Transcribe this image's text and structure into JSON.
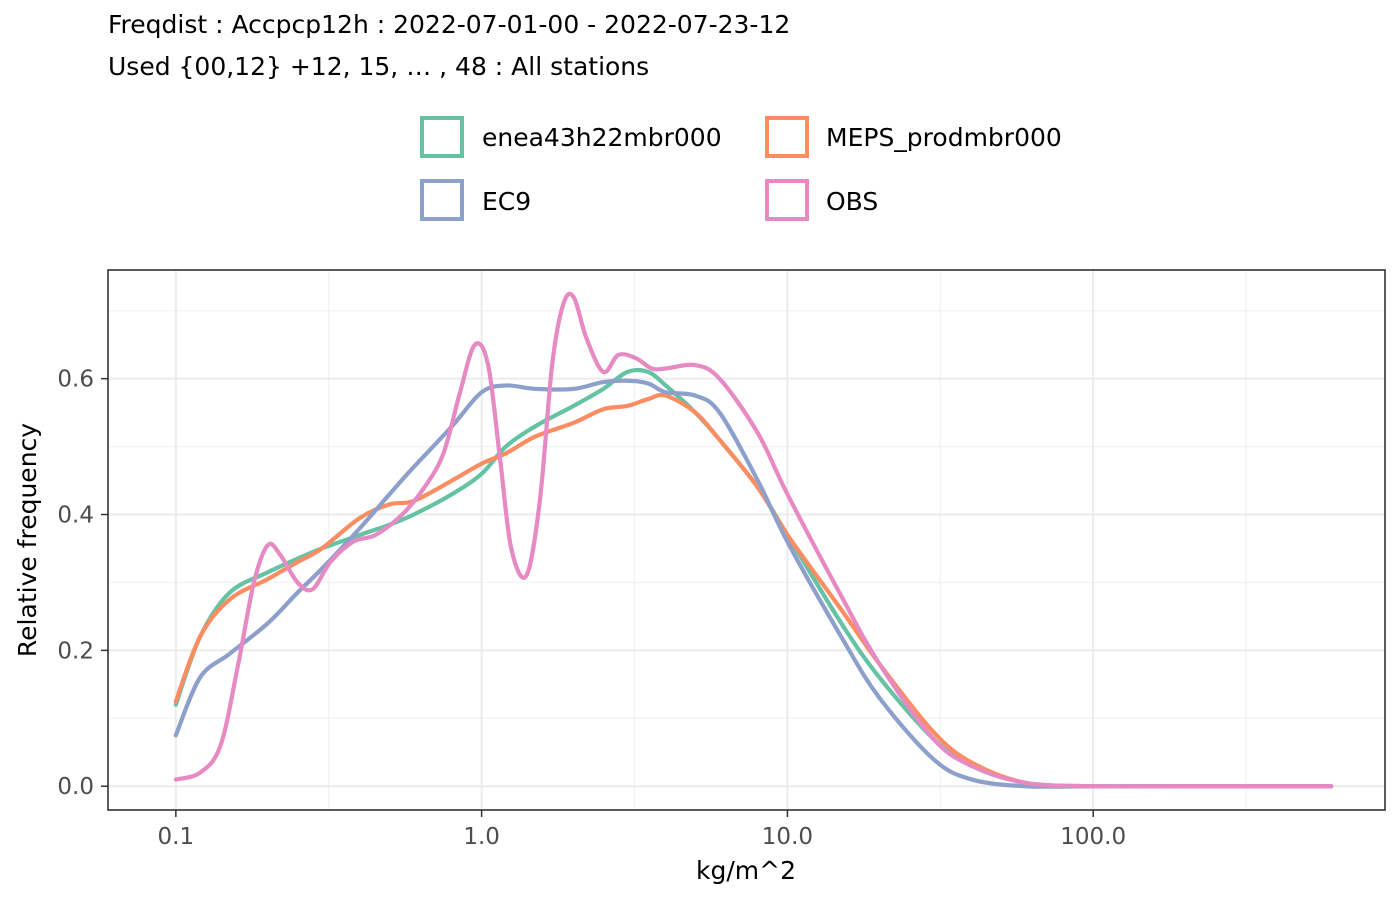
{
  "chart_data": {
    "type": "line",
    "title": "Freqdist : Accpcp12h : 2022-07-01-00 - 2022-07-23-12",
    "subtitle": "Used {00,12} +12, 15, … , 48 : All stations",
    "xlabel": "kg/m^2",
    "ylabel": "Relative frequency",
    "xscale": "log10",
    "xlim": [
      0.06,
      900
    ],
    "ylim": [
      -0.035,
      0.76
    ],
    "xticks": [
      0.1,
      1.0,
      10.0,
      100.0
    ],
    "xtick_labels": [
      "0.1",
      "1.0",
      "10.0",
      "100.0"
    ],
    "yticks": [
      0.0,
      0.2,
      0.4,
      0.6
    ],
    "ytick_labels": [
      "0.0",
      "0.2",
      "0.4",
      "0.6"
    ],
    "grid": true,
    "legend_position": "top",
    "series": [
      {
        "name": "enea43h22mbr000",
        "color": "#66c2a5",
        "x": [
          0.1,
          0.12,
          0.15,
          0.2,
          0.25,
          0.3,
          0.4,
          0.5,
          0.6,
          0.8,
          1.0,
          1.2,
          1.5,
          2.0,
          2.5,
          3.0,
          3.5,
          4.0,
          5.0,
          6.0,
          8.0,
          10.0,
          15.0,
          20.0,
          30.0,
          40.0,
          60.0,
          100.0,
          200.0,
          600.0
        ],
        "y": [
          0.12,
          0.22,
          0.285,
          0.315,
          0.335,
          0.35,
          0.37,
          0.385,
          0.4,
          0.43,
          0.46,
          0.5,
          0.53,
          0.56,
          0.585,
          0.61,
          0.61,
          0.59,
          0.55,
          0.51,
          0.44,
          0.37,
          0.24,
          0.16,
          0.07,
          0.03,
          0.005,
          0.0,
          0.0,
          0.0
        ]
      },
      {
        "name": "MEPS_prodmbr000",
        "color": "#fc8d62",
        "x": [
          0.1,
          0.12,
          0.15,
          0.2,
          0.25,
          0.3,
          0.4,
          0.5,
          0.6,
          0.8,
          1.0,
          1.2,
          1.5,
          2.0,
          2.5,
          3.0,
          3.5,
          4.0,
          5.0,
          6.0,
          8.0,
          10.0,
          15.0,
          20.0,
          30.0,
          40.0,
          60.0,
          100.0,
          200.0,
          600.0
        ],
        "y": [
          0.125,
          0.22,
          0.275,
          0.305,
          0.33,
          0.35,
          0.395,
          0.415,
          0.42,
          0.45,
          0.475,
          0.49,
          0.515,
          0.535,
          0.555,
          0.56,
          0.57,
          0.575,
          0.55,
          0.51,
          0.44,
          0.37,
          0.26,
          0.18,
          0.08,
          0.035,
          0.005,
          0.0,
          0.0,
          0.0
        ]
      },
      {
        "name": "EC9",
        "color": "#8da0cb",
        "x": [
          0.1,
          0.12,
          0.15,
          0.2,
          0.25,
          0.3,
          0.4,
          0.5,
          0.6,
          0.8,
          1.0,
          1.2,
          1.5,
          2.0,
          2.5,
          3.0,
          3.5,
          4.0,
          5.0,
          6.0,
          8.0,
          10.0,
          15.0,
          20.0,
          30.0,
          40.0,
          60.0,
          100.0,
          200.0,
          600.0
        ],
        "y": [
          0.075,
          0.16,
          0.195,
          0.24,
          0.285,
          0.32,
          0.38,
          0.43,
          0.47,
          0.53,
          0.58,
          0.59,
          0.585,
          0.585,
          0.595,
          0.597,
          0.593,
          0.58,
          0.575,
          0.55,
          0.45,
          0.36,
          0.22,
          0.13,
          0.04,
          0.01,
          0.0,
          0.0,
          0.0,
          0.0
        ]
      },
      {
        "name": "OBS",
        "color": "#e78ac3",
        "x": [
          0.1,
          0.12,
          0.14,
          0.16,
          0.18,
          0.2,
          0.22,
          0.25,
          0.28,
          0.32,
          0.38,
          0.45,
          0.55,
          0.65,
          0.75,
          0.85,
          0.95,
          1.05,
          1.15,
          1.25,
          1.4,
          1.55,
          1.7,
          1.85,
          2.0,
          2.2,
          2.5,
          2.8,
          3.2,
          3.6,
          4.0,
          5.0,
          6.0,
          8.0,
          10.0,
          15.0,
          20.0,
          30.0,
          40.0,
          60.0,
          100.0,
          200.0,
          600.0
        ],
        "y": [
          0.01,
          0.02,
          0.06,
          0.18,
          0.3,
          0.355,
          0.34,
          0.3,
          0.29,
          0.33,
          0.36,
          0.37,
          0.4,
          0.44,
          0.49,
          0.58,
          0.65,
          0.62,
          0.48,
          0.35,
          0.31,
          0.42,
          0.62,
          0.71,
          0.72,
          0.66,
          0.61,
          0.635,
          0.63,
          0.615,
          0.615,
          0.62,
          0.6,
          0.52,
          0.43,
          0.28,
          0.18,
          0.07,
          0.03,
          0.005,
          0.0,
          0.0,
          0.0
        ]
      }
    ]
  }
}
